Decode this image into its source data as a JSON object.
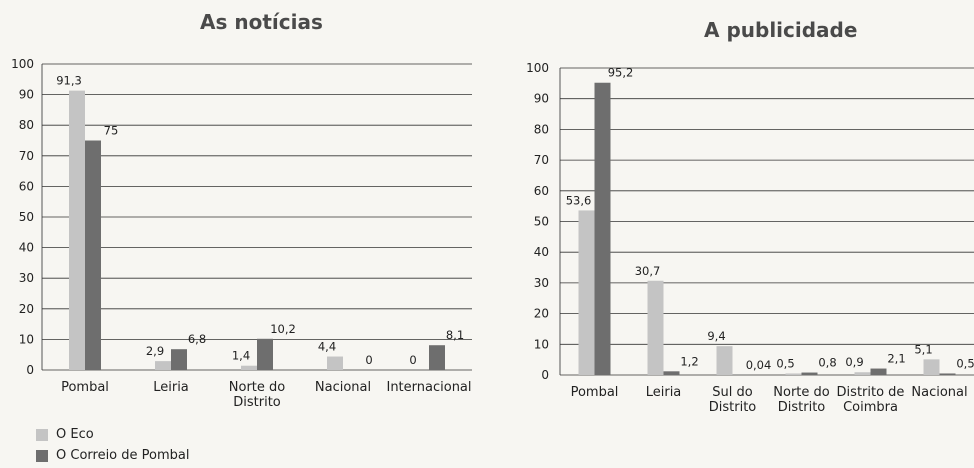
{
  "colors": {
    "eco": "#c4c4c4",
    "correio": "#6e6e6e",
    "grid": "#333333"
  },
  "legend": [
    {
      "label": "O Eco",
      "color": "#c4c4c4"
    },
    {
      "label": "O Correio de Pombal",
      "color": "#6e6e6e"
    }
  ],
  "chart_data": [
    {
      "type": "bar",
      "title": "As notícias",
      "ylim": [
        0,
        100
      ],
      "yticks": [
        "0",
        "10",
        "20",
        "30",
        "40",
        "50",
        "60",
        "70",
        "80",
        "90",
        "100"
      ],
      "grid": true,
      "categories": [
        [
          "Pombal"
        ],
        [
          "Leiria"
        ],
        [
          "Norte do",
          "Distrito"
        ],
        [
          "Nacional"
        ],
        [
          "Internacional"
        ]
      ],
      "series": [
        {
          "name": "O Eco",
          "values": [
            91.3,
            2.9,
            1.4,
            4.4,
            0
          ],
          "labels": [
            "91,3",
            "2,9",
            "1,4",
            "4,4",
            "0"
          ]
        },
        {
          "name": "O Correio de Pombal",
          "values": [
            75,
            6.8,
            10.2,
            0,
            8.1
          ],
          "labels": [
            "75",
            "6,8",
            "10,2",
            "0",
            "8,1"
          ]
        }
      ]
    },
    {
      "type": "bar",
      "title": "A publicidade",
      "ylim": [
        0,
        100
      ],
      "yticks": [
        "0",
        "10",
        "20",
        "30",
        "40",
        "50",
        "60",
        "70",
        "80",
        "90",
        "100"
      ],
      "grid": true,
      "categories": [
        [
          "Pombal"
        ],
        [
          "Leiria"
        ],
        [
          "Sul do",
          "Distrito"
        ],
        [
          "Norte do",
          "Distrito"
        ],
        [
          "Distrito de",
          "Coimbra"
        ],
        [
          "Nacional"
        ]
      ],
      "series": [
        {
          "name": "O Eco",
          "values": [
            53.6,
            30.7,
            9.4,
            0.5,
            0.9,
            5.1
          ],
          "labels": [
            "53,6",
            "30,7",
            "9,4",
            "0,5",
            "0,9",
            "5,1"
          ]
        },
        {
          "name": "O Correio de Pombal",
          "values": [
            95.2,
            1.2,
            0.04,
            0.8,
            2.1,
            0.5
          ],
          "labels": [
            "95,2",
            "1,2",
            "0,04",
            "0,8",
            "2,1",
            "0,5"
          ]
        }
      ]
    }
  ]
}
